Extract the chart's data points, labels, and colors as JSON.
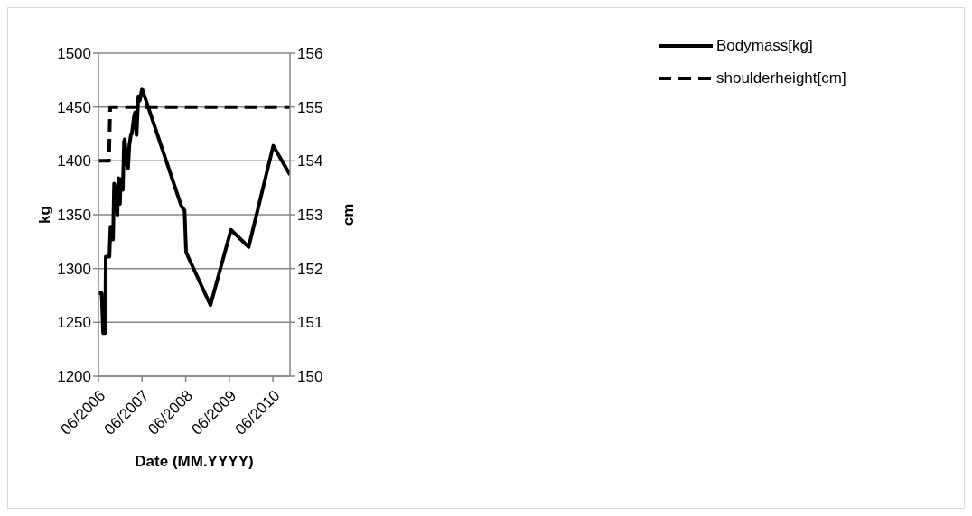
{
  "chart_data": {
    "type": "line",
    "xlabel": "Date (MM.YYYY)",
    "ylabel": "kg",
    "y2label": "cm",
    "xlim": [
      "2006-06-01",
      "2010-10-22"
    ],
    "xticks": [
      {
        "value": "2006-06-01",
        "label": "06/2006"
      },
      {
        "value": "2007-06-01",
        "label": "06/2007"
      },
      {
        "value": "2008-06-01",
        "label": "06/2008"
      },
      {
        "value": "2009-06-01",
        "label": "06/2009"
      },
      {
        "value": "2010-06-01",
        "label": "06/2010"
      }
    ],
    "ylim": [
      1200,
      1500
    ],
    "yticks": [
      1200,
      1250,
      1300,
      1350,
      1400,
      1450,
      1500
    ],
    "y2lim": [
      150,
      156
    ],
    "y2ticks": [
      150,
      151,
      152,
      153,
      154,
      155,
      156
    ],
    "grid": "y",
    "legend": "right",
    "marker": "none",
    "series": [
      {
        "name": "Bodymass[kg]",
        "color": "#000000",
        "line_style": "solid",
        "x": [
          "2006-06-01",
          "2006-06-28",
          "2006-07-10",
          "2006-07-28",
          "2006-08-01",
          "2006-09-01",
          "2006-09-04",
          "2006-09-10",
          "2006-09-22",
          "2006-10-01",
          "2006-10-10",
          "2006-10-25",
          "2006-11-07",
          "2006-11-15",
          "2006-11-28",
          "2006-12-04",
          "2006-12-22",
          "2007-01-01",
          "2007-01-07",
          "2007-01-25",
          "2007-02-04",
          "2007-02-15",
          "2007-03-01",
          "2007-03-07",
          "2007-03-28",
          "2007-04-04",
          "2007-04-16",
          "2007-05-01",
          "2007-05-13",
          "2007-06-01",
          "2008-04-25",
          "2008-05-22",
          "2008-06-04",
          "2008-12-25",
          "2009-06-15",
          "2009-11-10",
          "2010-06-04",
          "2010-10-22"
        ],
        "values": [
          1277,
          1277,
          1240,
          1240,
          1311,
          1311,
          1322,
          1339,
          1339,
          1327,
          1379,
          1371,
          1350,
          1384,
          1360,
          1383,
          1373,
          1418,
          1420,
          1396,
          1393,
          1415,
          1425,
          1425,
          1443,
          1445,
          1424,
          1460,
          1456,
          1467,
          1358,
          1354,
          1315,
          1266,
          1336,
          1320,
          1414,
          1387
        ]
      },
      {
        "name": "shoulderheight[cm]",
        "color": "#000000",
        "line_style": "dashed",
        "axis": "y2",
        "x": [
          "2006-06-01",
          "2006-08-28",
          "2006-09-07",
          "2010-10-22"
        ],
        "values": [
          154,
          154,
          155,
          155
        ]
      }
    ]
  }
}
